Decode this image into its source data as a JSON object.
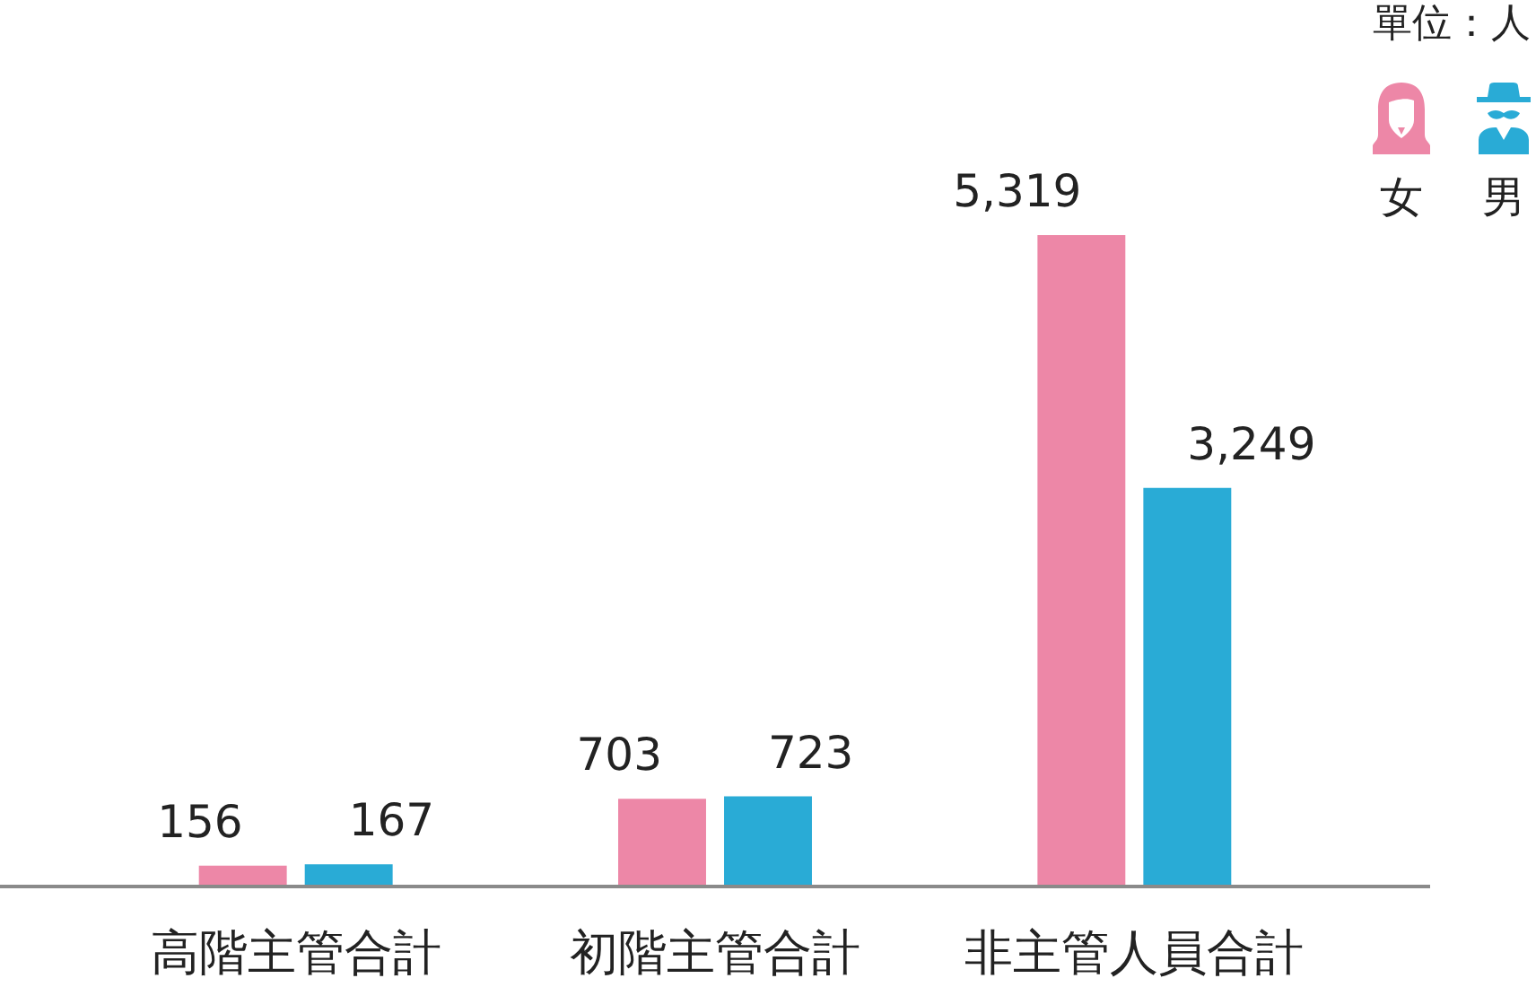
{
  "chart_data": {
    "type": "bar",
    "categories": [
      "高階主管合計",
      "初階主管合計",
      "非主管人員合計"
    ],
    "series": [
      {
        "name": "女",
        "color": "#ed87a7",
        "values": [
          156,
          703,
          5319
        ],
        "value_labels": [
          "156",
          "703",
          "5,319"
        ]
      },
      {
        "name": "男",
        "color": "#29abd6",
        "values": [
          167,
          723,
          3249
        ],
        "value_labels": [
          "167",
          "723",
          "3,249"
        ]
      }
    ],
    "legend": "top right",
    "grid": false,
    "annotations": [
      "單位：人"
    ]
  }
}
